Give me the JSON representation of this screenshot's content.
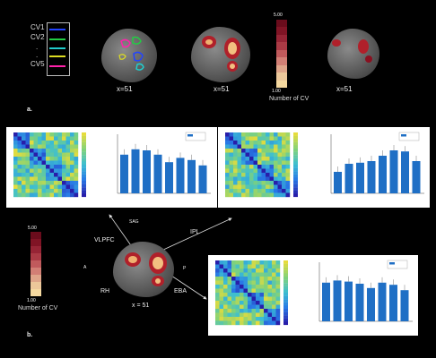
{
  "fig_a": {
    "cv_labels": [
      "CV1",
      "CV2",
      ".",
      ".",
      "CV5"
    ],
    "cv_colors": [
      "#2244ff",
      "#22cc44",
      "#22cccc",
      "#dddd22",
      "#ff22aa"
    ],
    "x_labels": [
      "x=51",
      "x=51",
      "x=51"
    ],
    "scale_max": "5.00",
    "scale_min": "1.00",
    "scale_caption": "Number of CV",
    "panel_label": "a."
  },
  "fig_b": {
    "panel_label": "b.",
    "brain_labels": {
      "sag": "SAG",
      "vlpfc": "VLPFC",
      "ipl": "IPL",
      "a": "A",
      "p": "P",
      "rh": "RH",
      "eba": "EBA",
      "x": "x = 51"
    },
    "scale_max": "5.00",
    "scale_min": "1.00",
    "scale_caption": "Number of CV"
  },
  "colors": {
    "scale": [
      "#f5d9a0",
      "#ecc79a",
      "#dfa58a",
      "#d27f75",
      "#c05a5c",
      "#aa3a45",
      "#962435",
      "#801425",
      "#6a0c1c"
    ]
  }
}
